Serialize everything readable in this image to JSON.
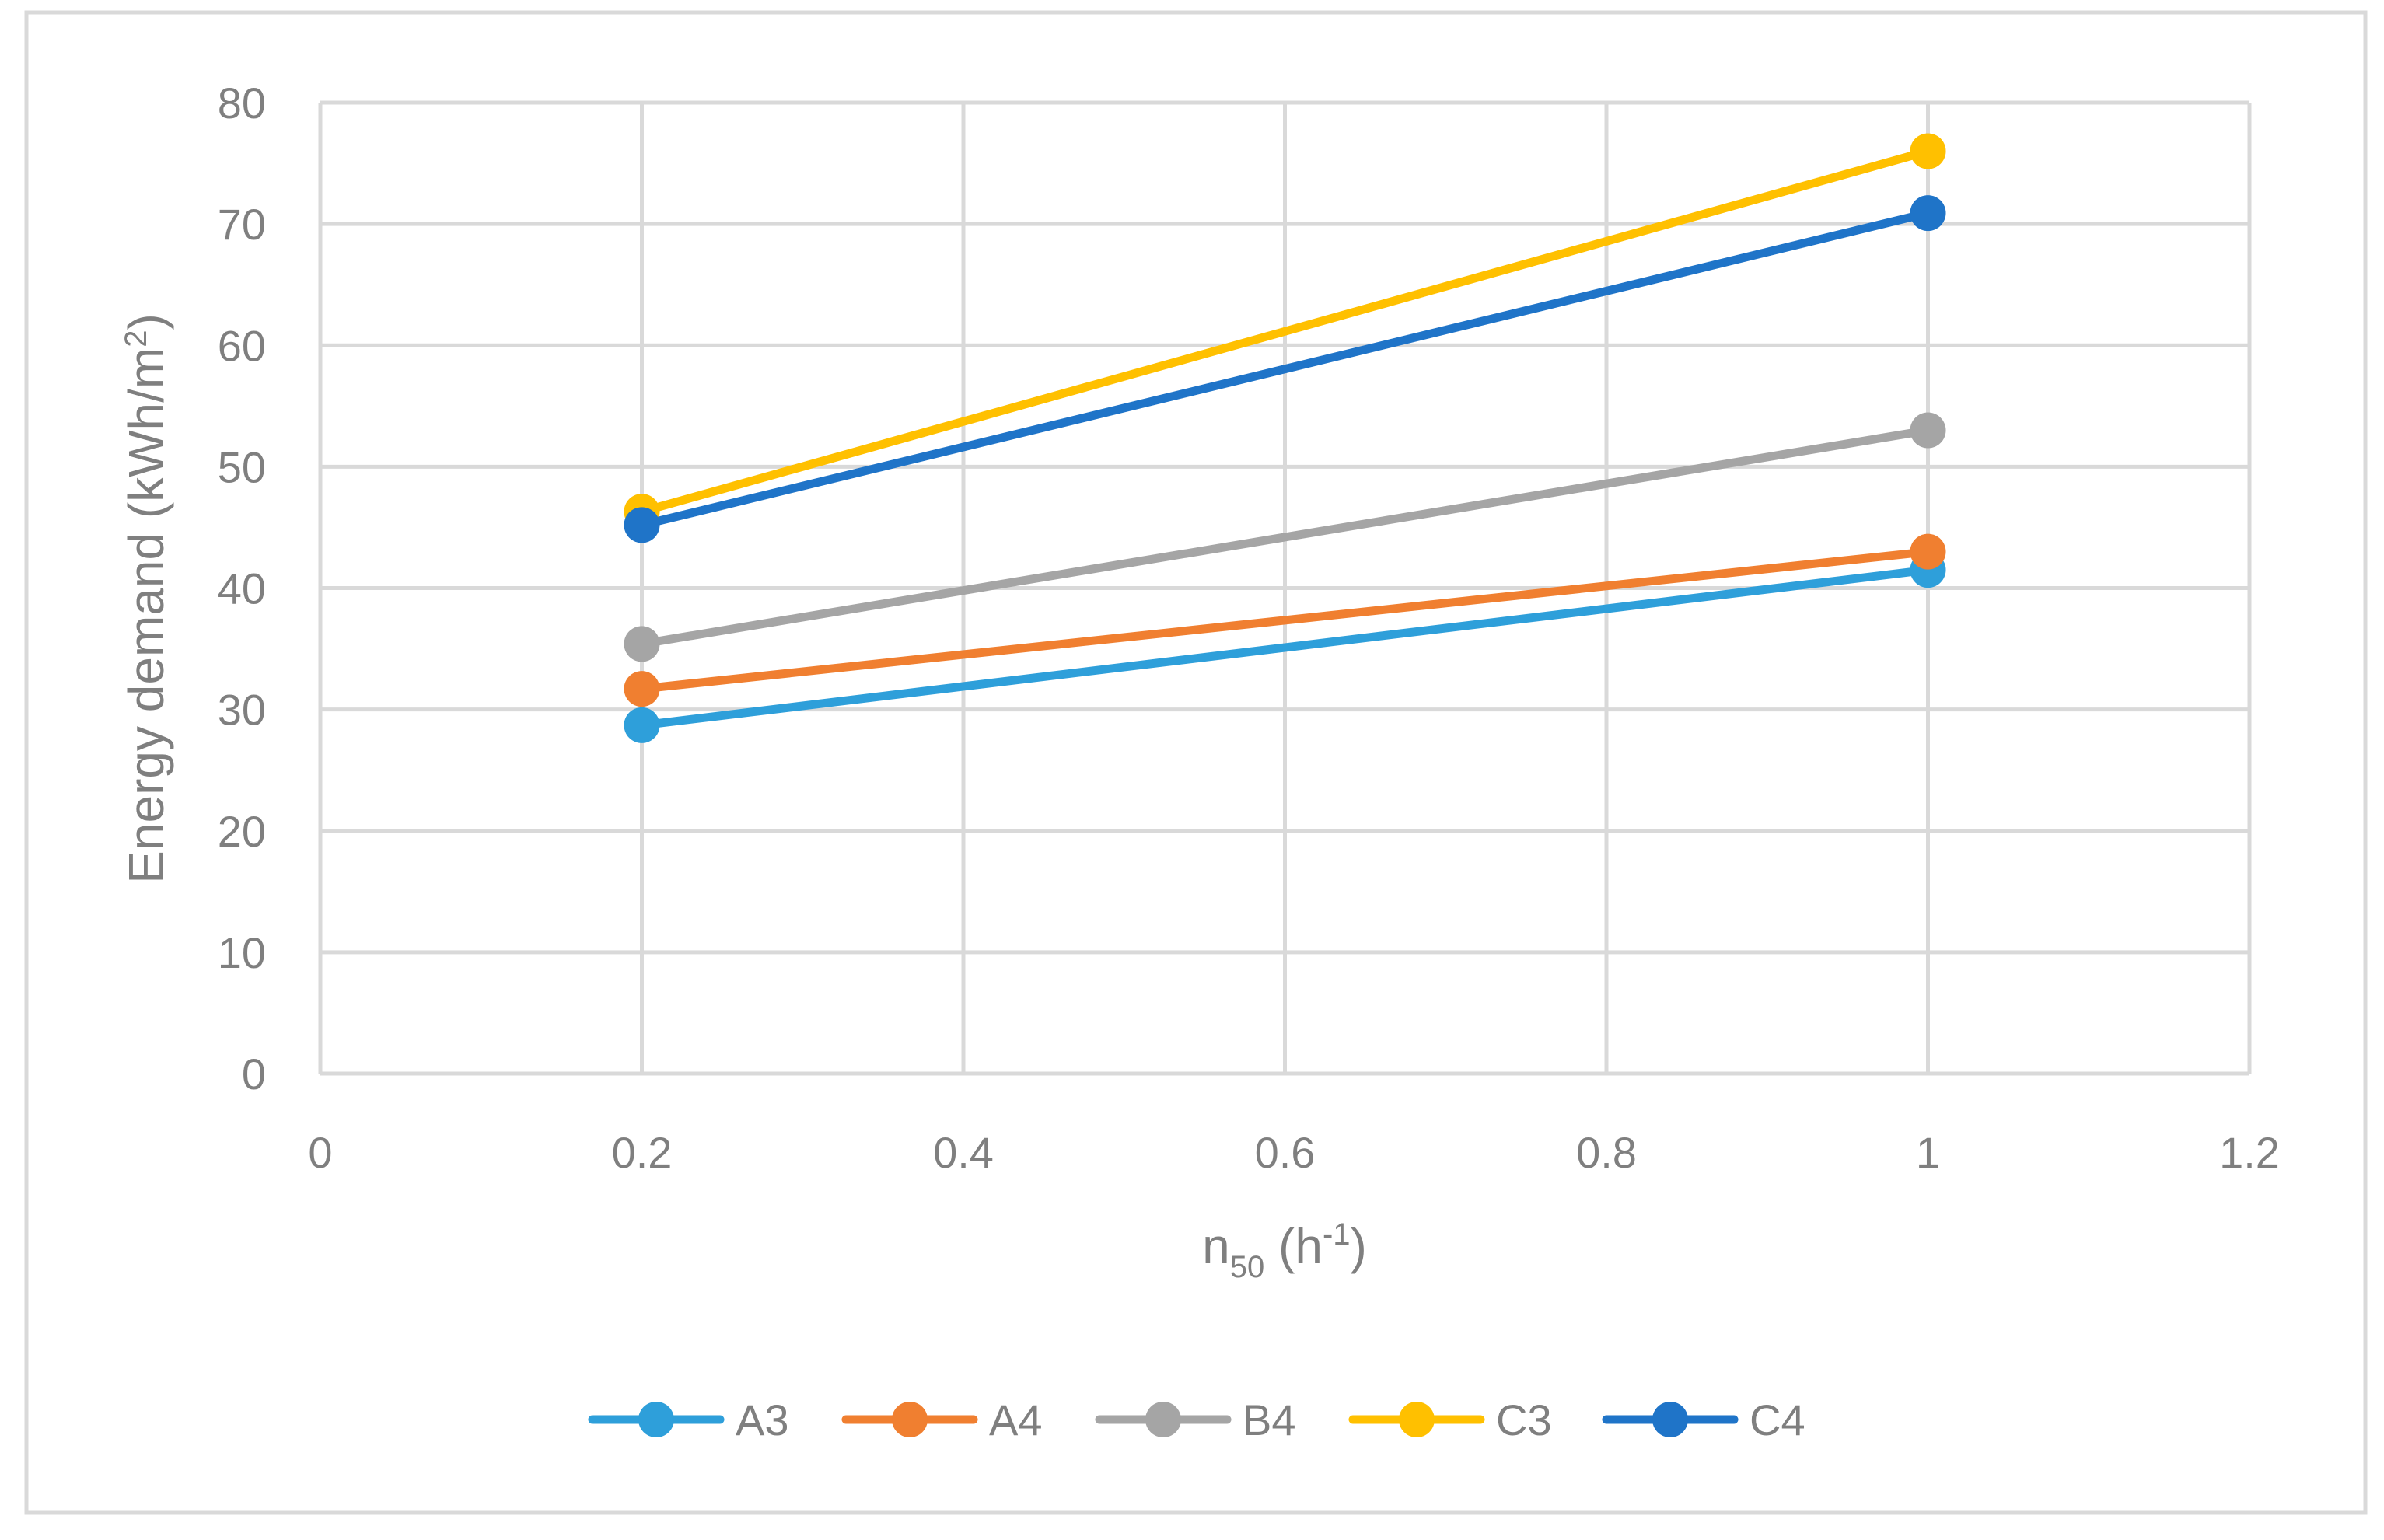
{
  "chart_data": {
    "type": "line",
    "title": "",
    "xlabel": {
      "base": "n",
      "sub": "50",
      "mid": " (h",
      "sup": "-1",
      "end": ")"
    },
    "ylabel": {
      "base": "Energy demand (kWh/m",
      "sup": "2",
      "end": ")"
    },
    "xlim": [
      0,
      1.2
    ],
    "ylim": [
      0,
      80
    ],
    "xticks": [
      0,
      0.2,
      0.4,
      0.6,
      0.8,
      1,
      1.2
    ],
    "xtick_labels": [
      "0",
      "0.2",
      "0.4",
      "0.6",
      "0.8",
      "1",
      "1.2"
    ],
    "yticks": [
      0,
      10,
      20,
      30,
      40,
      50,
      60,
      70,
      80
    ],
    "ytick_labels": [
      "0",
      "10",
      "20",
      "30",
      "40",
      "50",
      "60",
      "70",
      "80"
    ],
    "grid": true,
    "legend_position": "bottom",
    "series": [
      {
        "name": "A3",
        "color": "#2e9fda",
        "x": [
          0.2,
          1
        ],
        "y": [
          28.7,
          41.5
        ]
      },
      {
        "name": "A4",
        "color": "#f07f30",
        "x": [
          0.2,
          1
        ],
        "y": [
          31.7,
          43.0
        ]
      },
      {
        "name": "B4",
        "color": "#a5a5a5",
        "x": [
          0.2,
          1
        ],
        "y": [
          35.4,
          53.0
        ]
      },
      {
        "name": "C3",
        "color": "#ffc000",
        "x": [
          0.2,
          1
        ],
        "y": [
          46.3,
          76.0
        ]
      },
      {
        "name": "C4",
        "color": "#1f74c8",
        "x": [
          0.2,
          1
        ],
        "y": [
          45.2,
          70.9
        ]
      }
    ]
  },
  "colors": {
    "grid": "#d9d9d9",
    "frame": "#d9d9d9",
    "text": "#7f7f7f"
  }
}
